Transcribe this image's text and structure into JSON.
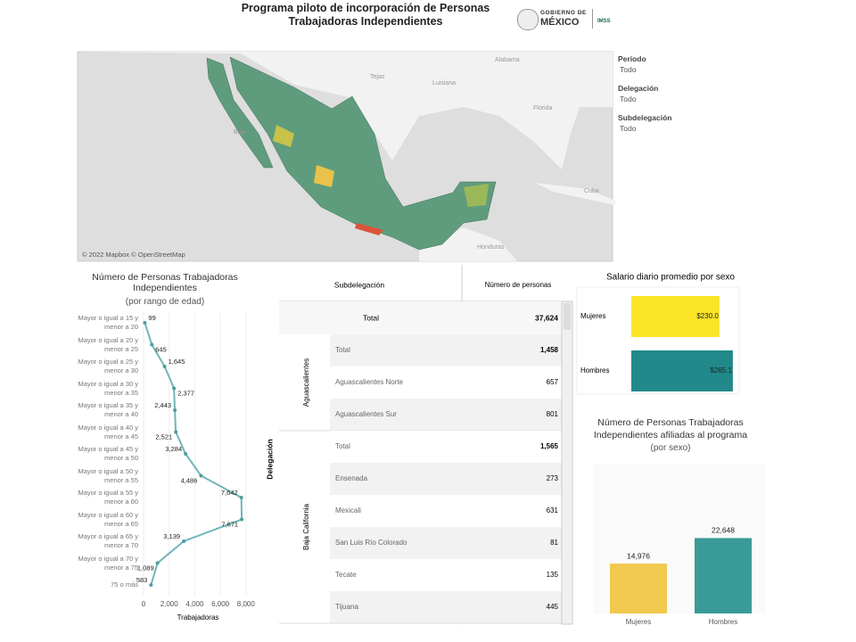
{
  "header": {
    "title": "Programa piloto de incorporación de Personas Trabajadoras Independientes",
    "logo": {
      "gobierno": "GOBIERNO DE",
      "mexico": "MÉXICO",
      "imss": "IMSS"
    }
  },
  "filters": [
    {
      "label": "Periodo",
      "value": "Todo"
    },
    {
      "label": "Delegación",
      "value": "Todo"
    },
    {
      "label": "Subdelegación",
      "value": "Todo"
    }
  ],
  "map": {
    "labels": [
      "Alabama",
      "Tejas",
      "Luisiana",
      "Florida",
      "Cuba",
      "Honduras",
      "Baja"
    ],
    "attribution": "© 2022 Mapbox © OpenStreetMap"
  },
  "table": {
    "headers": [
      "Subdelegación",
      "Número de personas"
    ],
    "group_header": "Delegación",
    "total": {
      "label": "Total",
      "value": "37,624"
    },
    "groups": [
      {
        "name": "Aguascalientes",
        "rows": [
          [
            "Total",
            "1,458"
          ],
          [
            "Aguascalientes Norte",
            "657"
          ],
          [
            "Aguascalientes Sur",
            "801"
          ]
        ]
      },
      {
        "name": "Baja California",
        "rows": [
          [
            "Total",
            "1,565"
          ],
          [
            "Ensenada",
            "273"
          ],
          [
            "Mexicali",
            "631"
          ],
          [
            "San Luis Río Colorado",
            "81"
          ],
          [
            "Tecate",
            "135"
          ],
          [
            "Tijuana",
            "445"
          ]
        ]
      }
    ]
  },
  "chart_data": [
    {
      "type": "line",
      "orientation": "horizontal",
      "title": "Número de Personas Trabajadoras Independientes",
      "subtitle": "(por rango de edad)",
      "x_label": "Trabajadoras",
      "color": "#6fb6b8",
      "categories": [
        "Mayor o igual a 15 y menor a 20",
        "Mayor o igual a 20 y menor a 25",
        "Mayor o igual a 25 y menor a 30",
        "Mayor o igual a 30 y menor a 35",
        "Mayor o igual a 35 y menor a 40",
        "Mayor o igual a 40 y menor a 45",
        "Mayor o igual a 45 y menor a 50",
        "Mayor o igual a 50 y menor a 55",
        "Mayor o igual a 55 y menor a 60",
        "Mayor o igual a 60 y menor a 65",
        "Mayor o igual a 65 y menor a 70",
        "Mayor o igual a 70 y menor a 75",
        "75 o más"
      ],
      "values": [
        99,
        645,
        1645,
        2377,
        2443,
        2521,
        3284,
        4486,
        7642,
        7671,
        3139,
        1089,
        583
      ],
      "value_labels": [
        "99",
        "645",
        "1,645",
        "2,377",
        "2,443",
        "2,521",
        "3,284",
        "4,486",
        "7,642",
        "7,671",
        "3,139",
        "1,089",
        "583"
      ],
      "xlim": [
        0,
        8500
      ],
      "xticks": [
        0,
        {
          "value": 2000,
          "label": "2,000"
        },
        {
          "value": 4000,
          "label": "4,000"
        },
        {
          "value": 6000,
          "label": "6,000"
        },
        {
          "value": 8000,
          "label": "8,000"
        }
      ],
      "grid": true
    },
    {
      "type": "hbar",
      "title": "Salario diario promedio por sexo",
      "categories": [
        "Mujeres",
        "Hombres"
      ],
      "values": [
        230.0,
        265.1
      ],
      "value_labels": [
        "$230.0",
        "$265.1"
      ],
      "colors": [
        "#fbe426",
        "#21898a"
      ],
      "xlim": [
        0,
        270
      ]
    },
    {
      "type": "bar",
      "title": "Número de Personas Trabajadoras Independientes afiliadas al programa",
      "subtitle": "(por sexo)",
      "categories": [
        "Mujeres",
        "Hombres"
      ],
      "values": [
        14976,
        22648
      ],
      "value_labels": [
        "14,976",
        "22,648"
      ],
      "colors": [
        "#f0c94e",
        "#3a9a98"
      ],
      "ylim": [
        0,
        45000
      ]
    }
  ]
}
